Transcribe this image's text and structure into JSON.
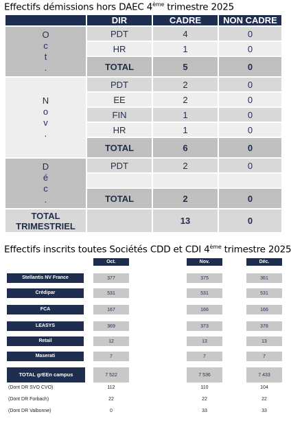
{
  "title1": {
    "main": "Effectifs démissions hors DAEC 4",
    "sup": "ème",
    "end": " trimestre 2025"
  },
  "table1": {
    "headers": {
      "dir": "DIR",
      "cadre": "CADRE",
      "noncadre": "NON CADRE"
    },
    "months": [
      {
        "label": "O\nc\nt\n.",
        "rows": [
          {
            "dir": "PDT",
            "cadre": "4",
            "noncadre": "0"
          },
          {
            "dir": "HR",
            "cadre": "1",
            "noncadre": "0"
          },
          {
            "dir": "TOTAL",
            "cadre": "5",
            "noncadre": "0",
            "total": true
          }
        ]
      },
      {
        "label": "N\no\nv\n.",
        "rows": [
          {
            "dir": "PDT",
            "cadre": "2",
            "noncadre": "0"
          },
          {
            "dir": "EE",
            "cadre": "2",
            "noncadre": "0"
          },
          {
            "dir": "FIN",
            "cadre": "1",
            "noncadre": "0"
          },
          {
            "dir": "HR",
            "cadre": "1",
            "noncadre": "0"
          },
          {
            "dir": "TOTAL",
            "cadre": "6",
            "noncadre": "0",
            "total": true
          }
        ]
      },
      {
        "label": "D\né\nc\n.",
        "rows": [
          {
            "dir": "PDT",
            "cadre": "2",
            "noncadre": "0"
          },
          {
            "dir": "",
            "cadre": "",
            "noncadre": ""
          },
          {
            "dir": "TOTAL",
            "cadre": "2",
            "noncadre": "0",
            "total": true
          }
        ]
      }
    ],
    "grand_total": {
      "label1": "TOTAL",
      "label2": "TRIMESTRIEL",
      "cadre": "13",
      "noncadre": "0"
    }
  },
  "title2": {
    "main": "Effectifs inscrits toutes Sociétés CDD et CDI 4",
    "sup": "ème",
    "end": " trimestre 2025"
  },
  "table2": {
    "headers": [
      "Oct.",
      "Nov.",
      "Déc."
    ],
    "rows": [
      {
        "label": "Stellantis NV France",
        "values": [
          "377",
          "375",
          "361"
        ]
      },
      {
        "label": "Crédipar",
        "values": [
          "531",
          "531",
          "531"
        ]
      },
      {
        "label": "FCA",
        "values": [
          "167",
          "166",
          "166"
        ]
      },
      {
        "label": "LEASYS",
        "values": [
          "369",
          "373",
          "378"
        ]
      },
      {
        "label": "Retail",
        "values": [
          "12",
          "13",
          "13"
        ]
      },
      {
        "label": "Maserati",
        "values": [
          "7",
          "7",
          "7"
        ]
      },
      {
        "label": "TOTAL  grEEn campus",
        "values": [
          "7 522",
          "7 536",
          "7 433"
        ],
        "total": true
      }
    ],
    "subrows": [
      {
        "label": "(Dont DR SVO CVO)",
        "values": [
          "112",
          "110",
          "104"
        ]
      },
      {
        "label": "(Dont DR Forbach)",
        "values": [
          "22",
          "22",
          "22"
        ]
      },
      {
        "label": "(Dont DR Valbonne)",
        "values": [
          "0",
          "33",
          "33"
        ]
      }
    ]
  }
}
